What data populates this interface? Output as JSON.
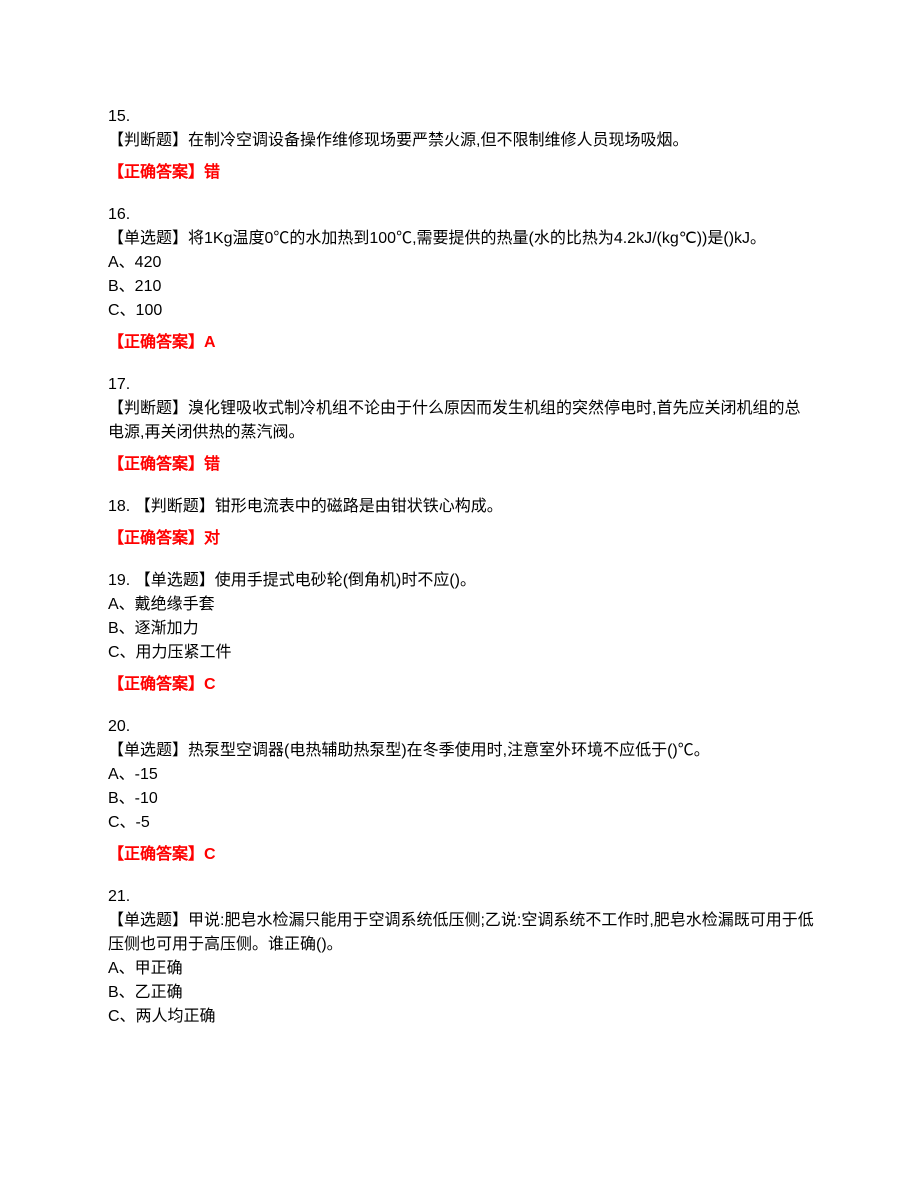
{
  "questions": [
    {
      "num": "15.",
      "text": "【判断题】在制冷空调设备操作维修现场要严禁火源,但不限制维修人员现场吸烟。",
      "options": [],
      "answer": "【正确答案】错"
    },
    {
      "num": "16.",
      "text": "【单选题】将1Kg温度0℃的水加热到100℃,需要提供的热量(水的比热为4.2kJ/(kg℃))是()kJ。",
      "options": [
        "A、420",
        "B、210",
        "C、100"
      ],
      "answer": "【正确答案】A"
    },
    {
      "num": "17.",
      "text": "【判断题】溴化锂吸收式制冷机组不论由于什么原因而发生机组的突然停电时,首先应关闭机组的总电源,再关闭供热的蒸汽阀。",
      "options": [],
      "answer": "【正确答案】错"
    },
    {
      "num": "18. ",
      "text": "【判断题】钳形电流表中的磁路是由钳状铁心构成。",
      "inline": true,
      "options": [],
      "answer": "【正确答案】对"
    },
    {
      "num": "19. ",
      "text": "【单选题】使用手提式电砂轮(倒角机)时不应()。",
      "inline": true,
      "options": [
        "A、戴绝缘手套",
        "B、逐渐加力",
        "C、用力压紧工件"
      ],
      "answer": "【正确答案】C"
    },
    {
      "num": "20.",
      "text": "【单选题】热泵型空调器(电热辅助热泵型)在冬季使用时,注意室外环境不应低于()℃。",
      "options": [
        "A、-15",
        "B、-10",
        "C、-5"
      ],
      "answer": "【正确答案】C"
    },
    {
      "num": "21.",
      "text": "【单选题】甲说:肥皂水检漏只能用于空调系统低压侧;乙说:空调系统不工作时,肥皂水检漏既可用于低压侧也可用于高压侧。谁正确()。",
      "options": [
        "A、甲正确",
        "B、乙正确",
        "C、两人均正确"
      ],
      "answer": ""
    }
  ]
}
